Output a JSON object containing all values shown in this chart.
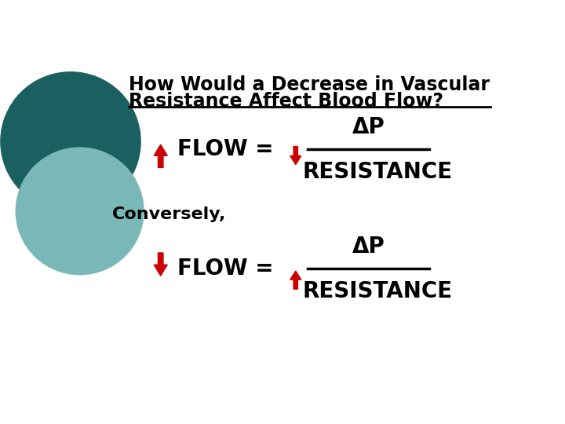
{
  "bg_color": "#ffffff",
  "title_line1": "How Would a Decrease in Vascular",
  "title_line2": "Resistance Affect Blood Flow?",
  "title_fontsize": 17,
  "title_color": "#000000",
  "line_color": "#000000",
  "line_width": 2,
  "conversely_text": "Conversely,",
  "conversely_fontsize": 16,
  "flow_fontsize": 20,
  "flow_text_color": "#000000",
  "arrow_color": "#cc0000",
  "circle_dark_color": "#1a6060",
  "circle_light_color": "#7ab8b8",
  "delta_p_text": "ΔP",
  "resistance_text": "RESISTANCE",
  "flow_eq_text": "FLOW = "
}
